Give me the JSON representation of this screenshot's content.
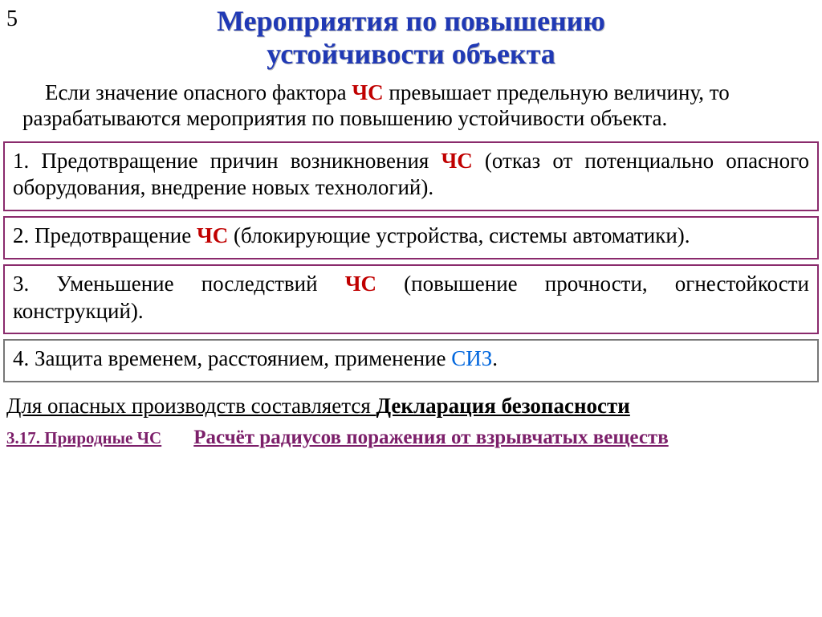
{
  "page_number": "5",
  "title_line1": "Мероприятия по повышению",
  "title_line2": "устойчивости объекта",
  "intro": {
    "part1": "Если значение опасного фактора ",
    "chs": "ЧС",
    "part2": " превышает предельную величину, то разрабатываются мероприятия по повышению устойчивости объекта."
  },
  "boxes": {
    "b1": {
      "color": "#8a2a6c",
      "pre": "1. Предотвращение причин возникновения ",
      "chs": "ЧС",
      "post": " (отказ от потенциально опасного оборудования, внедрение новых технологий)."
    },
    "b2": {
      "color": "#8a2a6c",
      "pre": "2. Предотвращение ",
      "chs": "ЧС",
      "post": " (блокирующие устройства, системы автоматики)."
    },
    "b3": {
      "color": "#8a2a6c",
      "pre": "3. Уменьшение последствий ",
      "chs": "ЧС",
      "post": " (повышение прочности, огнестойкости конструкций)."
    },
    "b4": {
      "color": "#777777",
      "pre": "4. Защита временем, расстоянием, применение ",
      "siz": "СИЗ",
      "post": "."
    }
  },
  "bottom": {
    "plain": "Для опасных производств составляется  ",
    "decl": "Декларация безопасности"
  },
  "footer": {
    "left": "3.17. Природные ЧС",
    "right": "Расчёт радиусов поражения от взрывчатых веществ"
  }
}
